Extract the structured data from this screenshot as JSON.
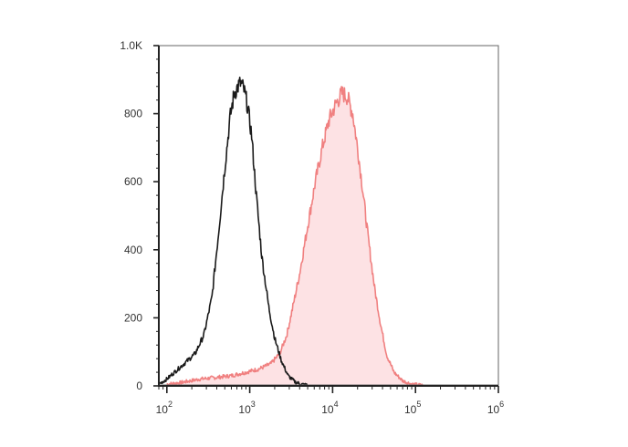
{
  "chart_data": {
    "type": "area",
    "title": "",
    "xlabel": "",
    "ylabel": "",
    "x_scale": "log",
    "xlim": [
      80,
      1000000
    ],
    "ylim": [
      0,
      1000
    ],
    "x_ticks": [
      {
        "base": "10",
        "exp": "2"
      },
      {
        "base": "10",
        "exp": "3"
      },
      {
        "base": "10",
        "exp": "4"
      },
      {
        "base": "10",
        "exp": "5"
      },
      {
        "base": "10",
        "exp": "6"
      }
    ],
    "y_ticks": [
      "0",
      "200",
      "400",
      "600",
      "800",
      "1.0K"
    ],
    "grid": false,
    "legend": "none",
    "series": [
      {
        "color": "#1a1a1a",
        "fill": "none",
        "x": [
          80,
          100,
          130,
          170,
          220,
          280,
          350,
          420,
          500,
          580,
          650,
          720,
          780,
          850,
          930,
          1050,
          1200,
          1400,
          1700,
          2000,
          2400,
          2900,
          3500,
          4200,
          5000,
          6000,
          7500,
          10000
        ],
        "values": [
          5,
          20,
          45,
          70,
          95,
          150,
          260,
          450,
          640,
          790,
          860,
          880,
          890,
          870,
          830,
          740,
          560,
          380,
          230,
          140,
          75,
          30,
          12,
          5,
          2,
          0,
          0,
          0
        ]
      },
      {
        "color": "#f08080",
        "fill": "#fde2e4",
        "x": [
          100,
          150,
          250,
          400,
          600,
          900,
          1300,
          1800,
          2300,
          2800,
          3300,
          4000,
          5000,
          6200,
          7500,
          9000,
          11000,
          13000,
          15000,
          17500,
          20000,
          23000,
          27000,
          32000,
          38000,
          45000,
          55000,
          70000,
          90000,
          120000,
          200000,
          1000000
        ],
        "values": [
          5,
          10,
          20,
          25,
          30,
          40,
          50,
          65,
          95,
          150,
          230,
          330,
          470,
          600,
          700,
          780,
          830,
          860,
          850,
          800,
          700,
          580,
          430,
          290,
          180,
          90,
          40,
          15,
          5,
          2,
          0,
          0
        ]
      }
    ]
  }
}
